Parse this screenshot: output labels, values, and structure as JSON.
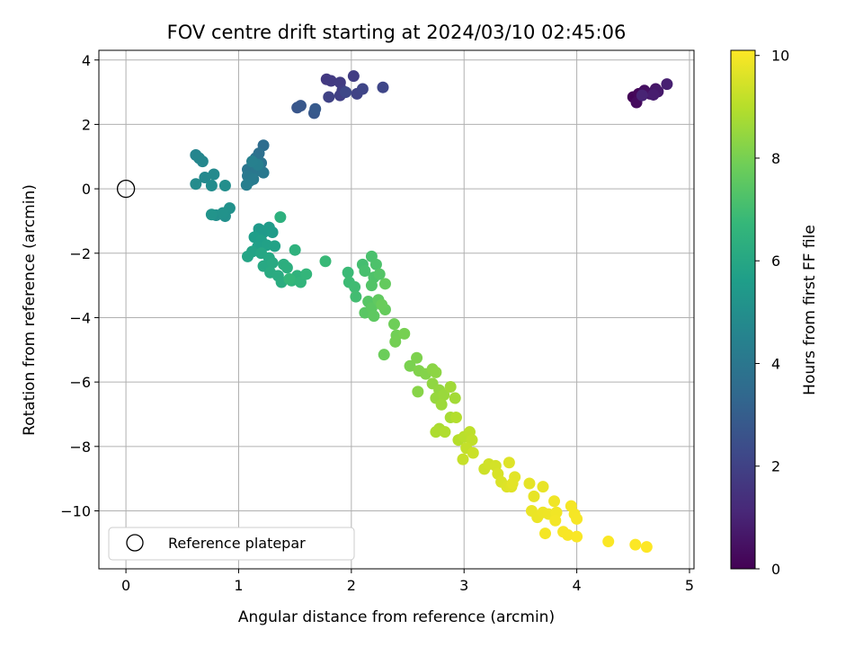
{
  "chart_data": {
    "type": "scatter",
    "title": "FOV centre drift starting at 2024/03/10 02:45:06",
    "xlabel": "Angular distance from reference (arcmin)",
    "ylabel": "Rotation from reference (arcmin)",
    "xlim": [
      -0.24,
      5.04
    ],
    "ylim": [
      -11.8,
      4.3
    ],
    "xticks": [
      0,
      1,
      2,
      3,
      4,
      5
    ],
    "yticks": [
      -10,
      -8,
      -6,
      -4,
      -2,
      0,
      2,
      4
    ],
    "grid": true,
    "legend": {
      "placement": "lower-left",
      "entries": [
        "Reference platepar"
      ]
    },
    "reference_point": {
      "x": 0,
      "y": 0,
      "marker": "open-circle",
      "label": "Reference platepar"
    },
    "colorbar": {
      "label": "Hours from first FF file",
      "range": [
        0,
        10.1
      ],
      "ticks": [
        0,
        2,
        4,
        6,
        8,
        10
      ],
      "colormap": "viridis"
    },
    "colormap_stops": [
      "#440154",
      "#482878",
      "#3e4989",
      "#31688e",
      "#26828e",
      "#1f9e89",
      "#35b779",
      "#6ece58",
      "#b5de2b",
      "#fde725"
    ],
    "points": [
      {
        "x": 4.5,
        "y": 2.85,
        "c": 0.1
      },
      {
        "x": 4.55,
        "y": 2.95,
        "c": 0.2
      },
      {
        "x": 4.53,
        "y": 2.68,
        "c": 0.3
      },
      {
        "x": 4.6,
        "y": 3.05,
        "c": 0.4
      },
      {
        "x": 4.65,
        "y": 2.95,
        "c": 0.5
      },
      {
        "x": 4.7,
        "y": 3.1,
        "c": 0.6
      },
      {
        "x": 4.72,
        "y": 3.02,
        "c": 0.7
      },
      {
        "x": 4.68,
        "y": 2.92,
        "c": 0.8
      },
      {
        "x": 4.8,
        "y": 3.25,
        "c": 0.9
      },
      {
        "x": 4.58,
        "y": 2.9,
        "c": 1.0
      },
      {
        "x": 1.78,
        "y": 3.4,
        "c": 1.7
      },
      {
        "x": 1.82,
        "y": 3.35,
        "c": 1.75
      },
      {
        "x": 1.9,
        "y": 3.3,
        "c": 1.8
      },
      {
        "x": 2.02,
        "y": 3.5,
        "c": 1.85
      },
      {
        "x": 1.92,
        "y": 3.05,
        "c": 1.9
      },
      {
        "x": 1.9,
        "y": 2.9,
        "c": 1.95
      },
      {
        "x": 1.8,
        "y": 2.85,
        "c": 2.0
      },
      {
        "x": 2.05,
        "y": 2.95,
        "c": 2.05
      },
      {
        "x": 2.1,
        "y": 3.1,
        "c": 2.1
      },
      {
        "x": 2.28,
        "y": 3.15,
        "c": 2.15
      },
      {
        "x": 1.95,
        "y": 3.0,
        "c": 2.2
      },
      {
        "x": 1.52,
        "y": 2.52,
        "c": 2.7
      },
      {
        "x": 1.55,
        "y": 2.58,
        "c": 2.75
      },
      {
        "x": 1.67,
        "y": 2.35,
        "c": 2.8
      },
      {
        "x": 1.68,
        "y": 2.48,
        "c": 2.85
      },
      {
        "x": 1.22,
        "y": 1.35,
        "c": 3.6
      },
      {
        "x": 1.18,
        "y": 1.1,
        "c": 3.7
      },
      {
        "x": 1.15,
        "y": 0.95,
        "c": 3.8
      },
      {
        "x": 1.2,
        "y": 0.8,
        "c": 3.85
      },
      {
        "x": 1.12,
        "y": 0.7,
        "c": 3.9
      },
      {
        "x": 1.08,
        "y": 0.6,
        "c": 3.95
      },
      {
        "x": 1.15,
        "y": 0.55,
        "c": 4.0
      },
      {
        "x": 1.22,
        "y": 0.5,
        "c": 4.05
      },
      {
        "x": 1.08,
        "y": 0.4,
        "c": 4.1
      },
      {
        "x": 1.1,
        "y": 0.25,
        "c": 4.15
      },
      {
        "x": 1.13,
        "y": 0.3,
        "c": 4.2
      },
      {
        "x": 1.07,
        "y": 0.12,
        "c": 4.3
      },
      {
        "x": 1.17,
        "y": 0.75,
        "c": 4.35
      },
      {
        "x": 1.12,
        "y": 0.85,
        "c": 4.4
      },
      {
        "x": 0.62,
        "y": 1.05,
        "c": 4.6
      },
      {
        "x": 0.65,
        "y": 0.95,
        "c": 4.65
      },
      {
        "x": 0.68,
        "y": 0.85,
        "c": 4.7
      },
      {
        "x": 0.7,
        "y": 0.35,
        "c": 4.75
      },
      {
        "x": 0.78,
        "y": 0.45,
        "c": 4.8
      },
      {
        "x": 0.62,
        "y": 0.15,
        "c": 4.85
      },
      {
        "x": 0.76,
        "y": 0.1,
        "c": 4.9
      },
      {
        "x": 0.88,
        "y": 0.1,
        "c": 4.95
      },
      {
        "x": 0.8,
        "y": -0.82,
        "c": 5.0
      },
      {
        "x": 0.88,
        "y": -0.85,
        "c": 5.05
      },
      {
        "x": 0.92,
        "y": -0.6,
        "c": 5.1
      },
      {
        "x": 0.86,
        "y": -0.75,
        "c": 5.15
      },
      {
        "x": 0.76,
        "y": -0.8,
        "c": 5.2
      },
      {
        "x": 1.18,
        "y": -1.25,
        "c": 5.4
      },
      {
        "x": 1.22,
        "y": -1.35,
        "c": 5.45
      },
      {
        "x": 1.27,
        "y": -1.2,
        "c": 5.5
      },
      {
        "x": 1.3,
        "y": -1.35,
        "c": 5.55
      },
      {
        "x": 1.14,
        "y": -1.5,
        "c": 5.6
      },
      {
        "x": 1.2,
        "y": -1.6,
        "c": 5.65
      },
      {
        "x": 1.17,
        "y": -1.8,
        "c": 5.7
      },
      {
        "x": 1.25,
        "y": -1.75,
        "c": 5.75
      },
      {
        "x": 1.32,
        "y": -1.78,
        "c": 5.8
      },
      {
        "x": 1.12,
        "y": -1.95,
        "c": 5.85
      },
      {
        "x": 1.08,
        "y": -2.1,
        "c": 5.9
      },
      {
        "x": 1.2,
        "y": -2.0,
        "c": 5.95
      },
      {
        "x": 1.27,
        "y": -2.15,
        "c": 6.0
      },
      {
        "x": 1.22,
        "y": -2.4,
        "c": 6.05
      },
      {
        "x": 1.3,
        "y": -2.3,
        "c": 6.1
      },
      {
        "x": 1.28,
        "y": -2.6,
        "c": 6.15
      },
      {
        "x": 1.35,
        "y": -2.7,
        "c": 6.2
      },
      {
        "x": 1.38,
        "y": -2.9,
        "c": 6.25
      },
      {
        "x": 1.4,
        "y": -2.35,
        "c": 6.3
      },
      {
        "x": 1.43,
        "y": -2.45,
        "c": 6.35
      },
      {
        "x": 1.37,
        "y": -0.88,
        "c": 6.4
      },
      {
        "x": 1.5,
        "y": -1.9,
        "c": 6.45
      },
      {
        "x": 1.52,
        "y": -2.7,
        "c": 6.5
      },
      {
        "x": 1.47,
        "y": -2.85,
        "c": 6.55
      },
      {
        "x": 1.55,
        "y": -2.9,
        "c": 6.6
      },
      {
        "x": 1.6,
        "y": -2.65,
        "c": 6.65
      },
      {
        "x": 1.45,
        "y": -2.8,
        "c": 6.7
      },
      {
        "x": 1.77,
        "y": -2.25,
        "c": 6.8
      },
      {
        "x": 1.97,
        "y": -2.6,
        "c": 6.85
      },
      {
        "x": 1.98,
        "y": -2.9,
        "c": 6.9
      },
      {
        "x": 2.03,
        "y": -3.05,
        "c": 6.95
      },
      {
        "x": 2.04,
        "y": -3.35,
        "c": 7.0
      },
      {
        "x": 2.1,
        "y": -2.35,
        "c": 7.05
      },
      {
        "x": 2.12,
        "y": -2.55,
        "c": 7.1
      },
      {
        "x": 2.18,
        "y": -2.1,
        "c": 7.15
      },
      {
        "x": 2.22,
        "y": -2.35,
        "c": 7.2
      },
      {
        "x": 2.2,
        "y": -2.75,
        "c": 7.25
      },
      {
        "x": 2.18,
        "y": -3.0,
        "c": 7.3
      },
      {
        "x": 2.25,
        "y": -2.65,
        "c": 7.35
      },
      {
        "x": 2.15,
        "y": -3.5,
        "c": 7.4
      },
      {
        "x": 2.12,
        "y": -3.85,
        "c": 7.45
      },
      {
        "x": 2.18,
        "y": -3.7,
        "c": 7.5
      },
      {
        "x": 2.2,
        "y": -3.95,
        "c": 7.55
      },
      {
        "x": 2.24,
        "y": -3.45,
        "c": 7.6
      },
      {
        "x": 2.3,
        "y": -2.95,
        "c": 7.65
      },
      {
        "x": 2.3,
        "y": -3.75,
        "c": 7.7
      },
      {
        "x": 2.27,
        "y": -3.6,
        "c": 7.75
      },
      {
        "x": 2.29,
        "y": -5.15,
        "c": 7.8
      },
      {
        "x": 2.38,
        "y": -4.2,
        "c": 7.85
      },
      {
        "x": 2.4,
        "y": -4.55,
        "c": 7.9
      },
      {
        "x": 2.39,
        "y": -4.75,
        "c": 7.95
      },
      {
        "x": 2.47,
        "y": -4.5,
        "c": 8.0
      },
      {
        "x": 2.52,
        "y": -5.5,
        "c": 8.05
      },
      {
        "x": 2.58,
        "y": -5.25,
        "c": 8.1
      },
      {
        "x": 2.6,
        "y": -5.65,
        "c": 8.15
      },
      {
        "x": 2.66,
        "y": -5.75,
        "c": 8.2
      },
      {
        "x": 2.59,
        "y": -6.3,
        "c": 8.25
      },
      {
        "x": 2.72,
        "y": -5.6,
        "c": 8.3
      },
      {
        "x": 2.75,
        "y": -5.7,
        "c": 8.35
      },
      {
        "x": 2.72,
        "y": -6.05,
        "c": 8.4
      },
      {
        "x": 2.78,
        "y": -6.25,
        "c": 8.45
      },
      {
        "x": 2.75,
        "y": -6.5,
        "c": 8.5
      },
      {
        "x": 2.82,
        "y": -6.4,
        "c": 8.55
      },
      {
        "x": 2.8,
        "y": -6.7,
        "c": 8.6
      },
      {
        "x": 2.88,
        "y": -6.15,
        "c": 8.65
      },
      {
        "x": 2.92,
        "y": -6.5,
        "c": 8.7
      },
      {
        "x": 2.88,
        "y": -7.1,
        "c": 8.75
      },
      {
        "x": 2.78,
        "y": -7.45,
        "c": 8.8
      },
      {
        "x": 2.75,
        "y": -7.55,
        "c": 8.85
      },
      {
        "x": 2.83,
        "y": -7.55,
        "c": 8.9
      },
      {
        "x": 2.93,
        "y": -7.1,
        "c": 8.95
      },
      {
        "x": 2.95,
        "y": -7.8,
        "c": 9.0
      },
      {
        "x": 3.0,
        "y": -7.7,
        "c": 9.05
      },
      {
        "x": 3.05,
        "y": -7.55,
        "c": 9.1
      },
      {
        "x": 3.07,
        "y": -7.8,
        "c": 9.15
      },
      {
        "x": 3.02,
        "y": -8.05,
        "c": 9.2
      },
      {
        "x": 2.99,
        "y": -8.4,
        "c": 9.25
      },
      {
        "x": 3.08,
        "y": -8.2,
        "c": 9.3
      },
      {
        "x": 3.18,
        "y": -8.7,
        "c": 9.35
      },
      {
        "x": 3.22,
        "y": -8.55,
        "c": 9.4
      },
      {
        "x": 3.28,
        "y": -8.6,
        "c": 9.45
      },
      {
        "x": 3.3,
        "y": -8.85,
        "c": 9.5
      },
      {
        "x": 3.33,
        "y": -9.1,
        "c": 9.55
      },
      {
        "x": 3.38,
        "y": -9.25,
        "c": 9.6
      },
      {
        "x": 3.4,
        "y": -8.5,
        "c": 9.62
      },
      {
        "x": 3.42,
        "y": -9.25,
        "c": 9.65
      },
      {
        "x": 3.45,
        "y": -8.95,
        "c": 9.68
      },
      {
        "x": 3.43,
        "y": -9.15,
        "c": 9.7
      },
      {
        "x": 3.58,
        "y": -9.15,
        "c": 9.72
      },
      {
        "x": 3.62,
        "y": -9.55,
        "c": 9.75
      },
      {
        "x": 3.7,
        "y": -9.25,
        "c": 9.78
      },
      {
        "x": 3.6,
        "y": -10.0,
        "c": 9.8
      },
      {
        "x": 3.65,
        "y": -10.2,
        "c": 9.82
      },
      {
        "x": 3.7,
        "y": -10.05,
        "c": 9.85
      },
      {
        "x": 3.75,
        "y": -10.1,
        "c": 9.87
      },
      {
        "x": 3.8,
        "y": -9.7,
        "c": 9.9
      },
      {
        "x": 3.82,
        "y": -10.05,
        "c": 9.92
      },
      {
        "x": 3.81,
        "y": -10.3,
        "c": 9.94
      },
      {
        "x": 3.72,
        "y": -10.7,
        "c": 9.96
      },
      {
        "x": 3.95,
        "y": -9.85,
        "c": 9.97
      },
      {
        "x": 3.98,
        "y": -10.1,
        "c": 9.98
      },
      {
        "x": 4.0,
        "y": -10.25,
        "c": 9.99
      },
      {
        "x": 3.88,
        "y": -10.65,
        "c": 10.0
      },
      {
        "x": 3.92,
        "y": -10.75,
        "c": 10.02
      },
      {
        "x": 4.0,
        "y": -10.8,
        "c": 10.04
      },
      {
        "x": 4.28,
        "y": -10.95,
        "c": 10.06
      },
      {
        "x": 4.52,
        "y": -11.05,
        "c": 10.08
      },
      {
        "x": 4.62,
        "y": -11.12,
        "c": 10.1
      }
    ]
  }
}
